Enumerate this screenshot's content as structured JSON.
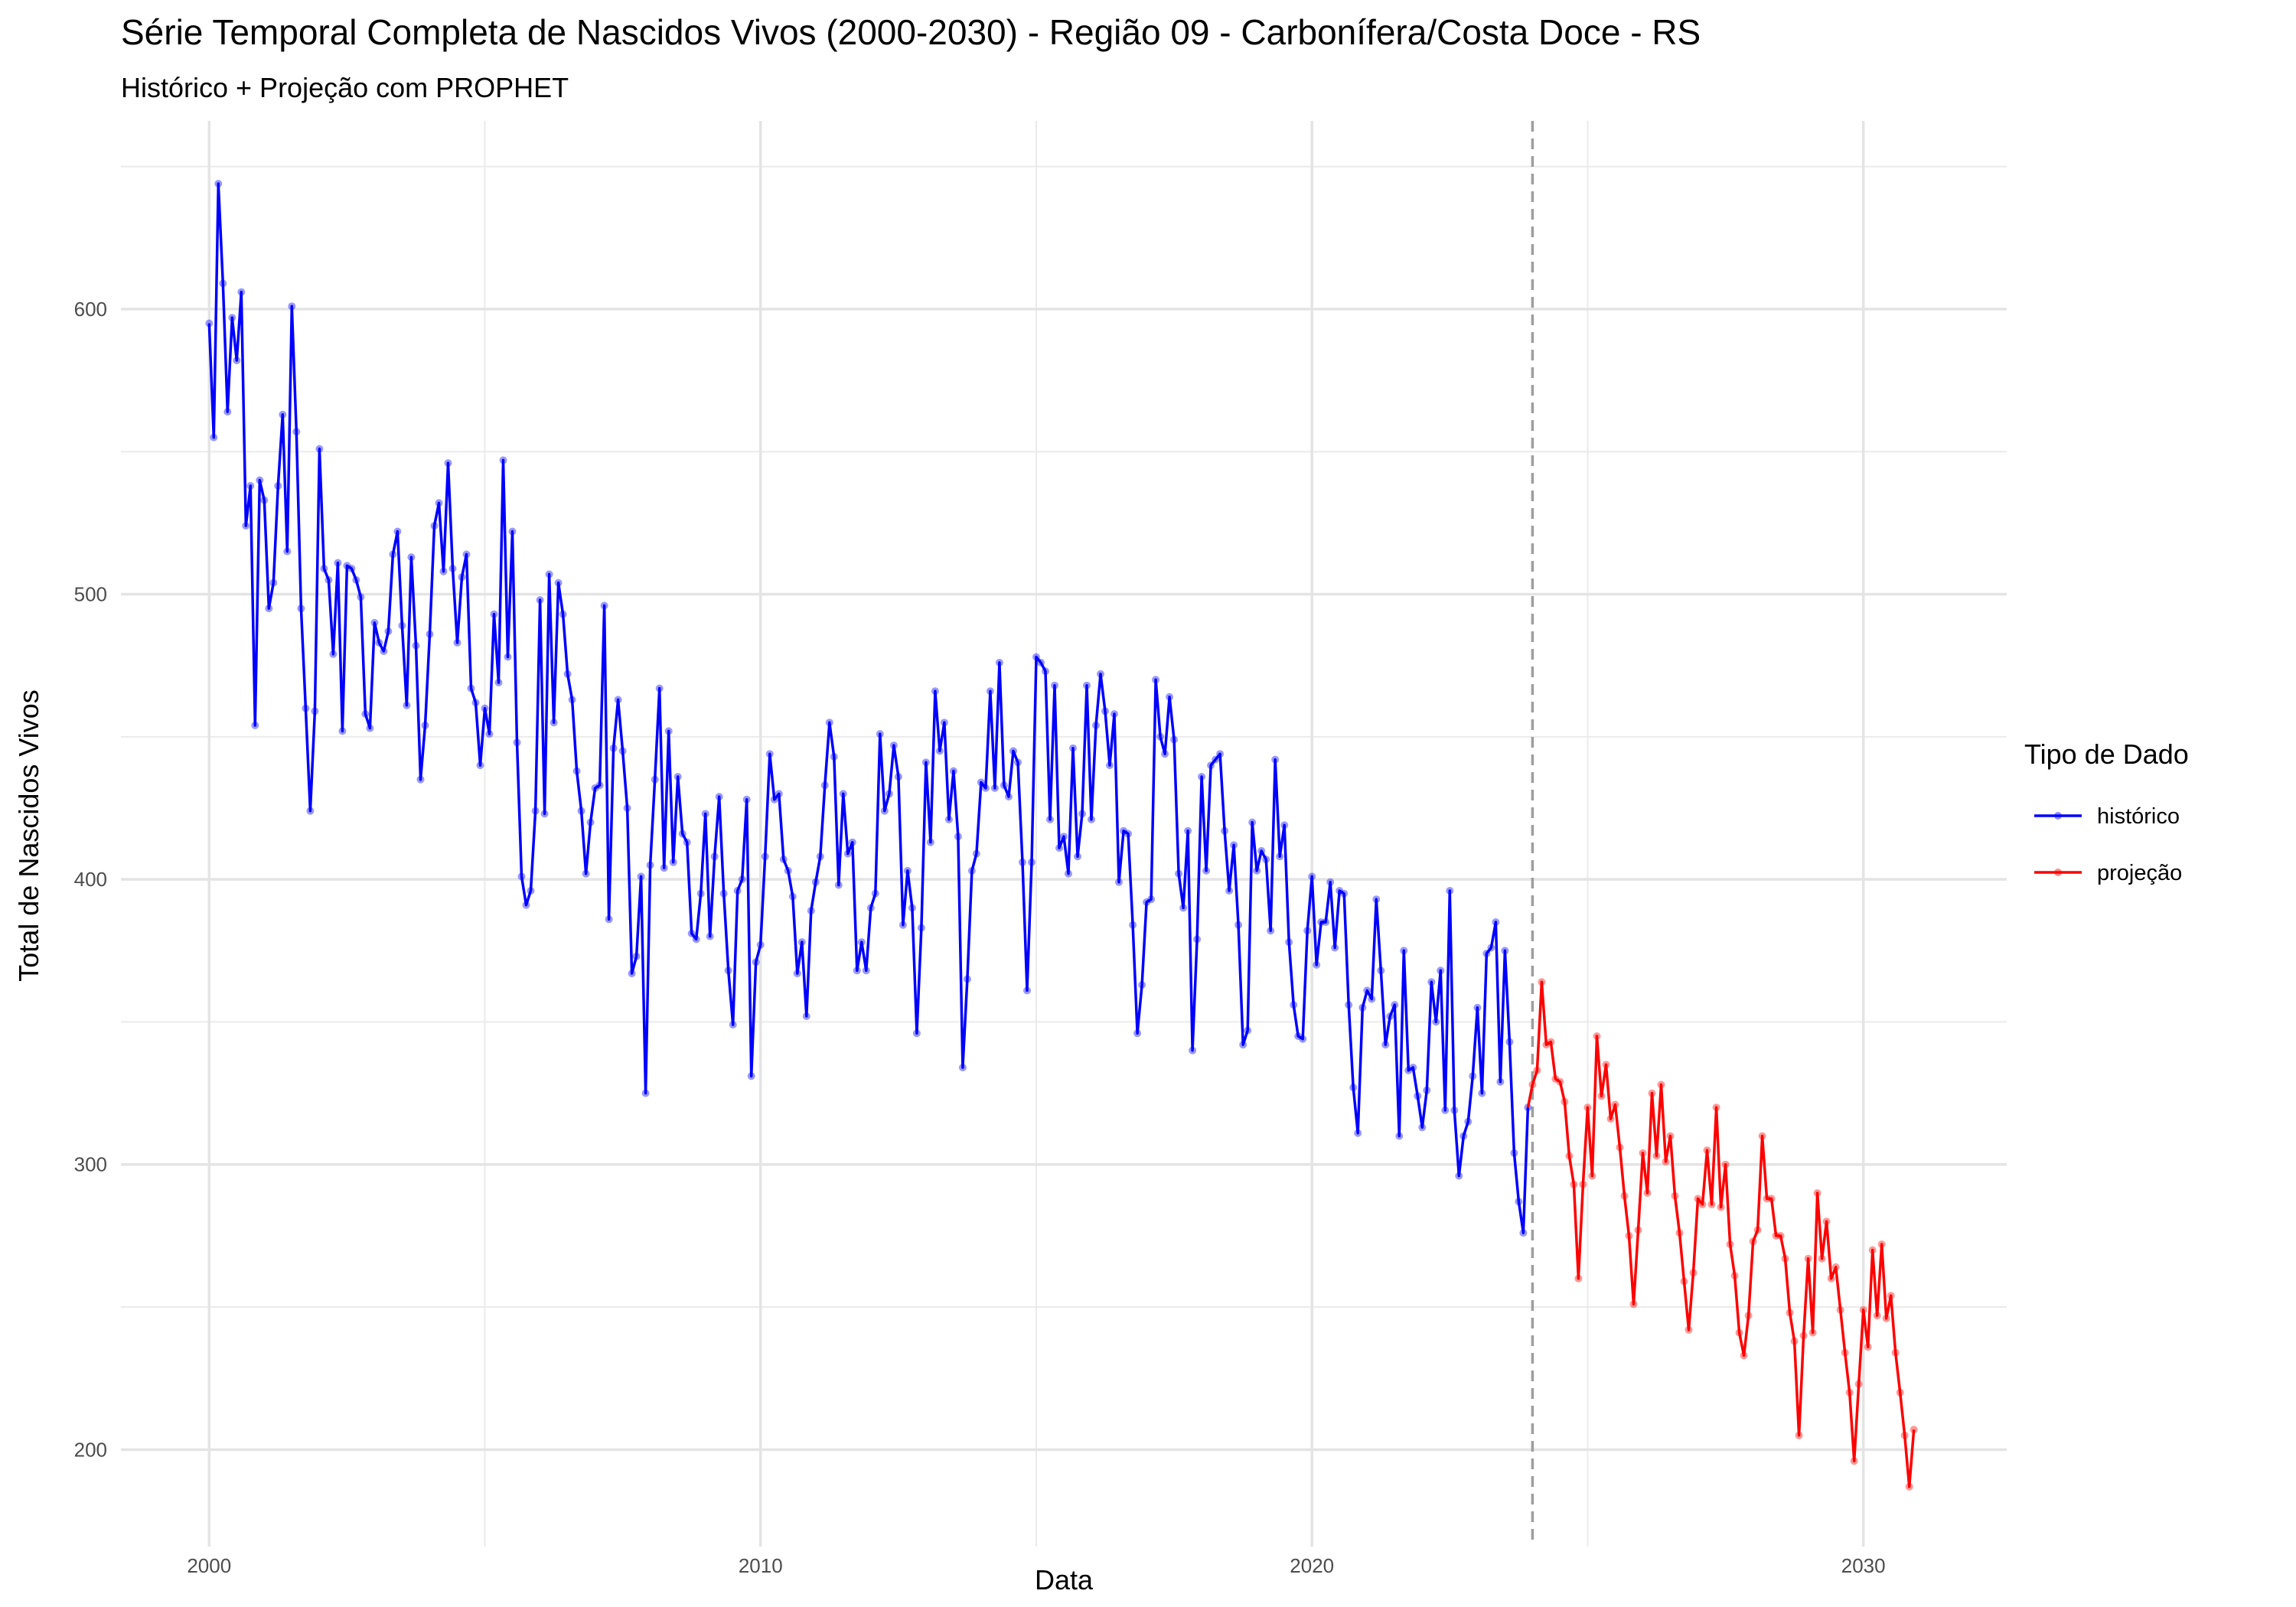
{
  "chart_data": {
    "type": "line",
    "title": "Série Temporal Completa de Nascidos Vivos (2000-2030) -  Região 09 - Carbonífera/Costa Doce - RS",
    "subtitle": "Histórico + Projeção com PROPHET",
    "xlabel": "Data",
    "ylabel": "Total de Nascidos Vivos",
    "x_ticks": [
      "2000",
      "2010",
      "2020",
      "2030"
    ],
    "y_ticks": [
      200,
      300,
      400,
      500,
      600
    ],
    "xlim": [
      1998.4,
      2032.6
    ],
    "ylim": [
      166,
      666
    ],
    "grid": true,
    "forecast_start": 2024.0,
    "legend": {
      "title": "Tipo de Dado",
      "position": "right",
      "entries": [
        {
          "label": "histórico",
          "color": "#0000ff"
        },
        {
          "label": "projeção",
          "color": "#ff0000"
        }
      ]
    },
    "series": [
      {
        "name": "histórico",
        "color": "#0000ff",
        "x_start": 2000.0,
        "step": 0.0833333,
        "values": [
          595,
          555,
          644,
          609,
          564,
          597,
          582,
          606,
          524,
          538,
          454,
          540,
          533,
          495,
          504,
          538,
          563,
          515,
          601,
          557,
          495,
          460,
          424,
          459,
          551,
          509,
          505,
          479,
          511,
          452,
          510,
          509,
          505,
          499,
          458,
          453,
          490,
          483,
          480,
          487,
          514,
          522,
          489,
          461,
          513,
          482,
          435,
          454,
          486,
          524,
          532,
          508,
          546,
          509,
          483,
          506,
          514,
          467,
          462,
          440,
          460,
          451,
          493,
          469,
          547,
          478,
          522,
          448,
          401,
          391,
          396,
          424,
          498,
          423,
          507,
          455,
          504,
          493,
          472,
          463,
          438,
          424,
          402,
          420,
          432,
          433,
          496,
          386,
          446,
          463,
          445,
          425,
          367,
          373,
          401,
          325,
          405,
          435,
          467,
          404,
          452,
          406,
          436,
          416,
          413,
          381,
          379,
          395,
          423,
          380,
          408,
          429,
          395,
          368,
          349,
          396,
          400,
          428,
          331,
          371,
          377,
          408,
          444,
          428,
          430,
          407,
          403,
          394,
          367,
          378,
          352,
          389,
          399,
          408,
          433,
          455,
          443,
          398,
          430,
          409,
          413,
          368,
          378,
          368,
          390,
          395,
          451,
          424,
          430,
          447,
          436,
          384,
          403,
          390,
          346,
          383,
          441,
          413,
          466,
          445,
          455,
          421,
          438,
          415,
          334,
          365,
          403,
          409,
          434,
          432,
          466,
          432,
          476,
          433,
          429,
          445,
          441,
          406,
          361,
          406,
          478,
          476,
          473,
          421,
          468,
          411,
          415,
          402,
          446,
          408,
          423,
          468,
          421,
          454,
          472,
          459,
          440,
          458,
          399,
          417,
          416,
          384,
          346,
          363,
          392,
          393,
          470,
          450,
          444,
          464,
          449,
          402,
          390,
          417,
          340,
          379,
          436,
          403,
          440,
          442,
          444,
          417,
          396,
          412,
          384,
          342,
          347,
          420,
          403,
          410,
          407,
          382,
          442,
          408,
          419,
          378,
          356,
          345,
          344,
          382,
          401,
          370,
          385,
          385,
          399,
          376,
          396,
          395,
          356,
          327,
          311,
          355,
          361,
          358,
          393,
          368,
          342,
          352,
          356,
          310,
          375,
          333,
          334,
          324,
          313,
          326,
          364,
          350,
          368,
          319,
          396,
          319,
          296,
          310,
          315,
          331,
          355,
          325,
          374,
          376,
          385,
          329,
          375,
          343,
          304,
          287,
          276,
          320
        ]
      },
      {
        "name": "projeção",
        "color": "#ff0000",
        "x_start": 2024.0,
        "step": 0.0833333,
        "values": [
          328,
          333,
          364,
          342,
          343,
          330,
          329,
          322,
          303,
          293,
          260,
          293,
          320,
          296,
          345,
          324,
          335,
          316,
          321,
          306,
          289,
          275,
          251,
          277,
          304,
          290,
          325,
          303,
          328,
          301,
          310,
          289,
          276,
          259,
          242,
          262,
          288,
          286,
          305,
          286,
          320,
          285,
          300,
          272,
          261,
          241,
          233,
          247,
          273,
          277,
          310,
          288,
          288,
          275,
          275,
          267,
          248,
          238,
          205,
          240,
          267,
          241,
          290,
          267,
          280,
          260,
          264,
          249,
          234,
          220,
          196,
          223,
          249,
          236,
          270,
          247,
          272,
          246,
          254,
          234,
          220,
          205,
          187,
          207
        ]
      }
    ]
  }
}
